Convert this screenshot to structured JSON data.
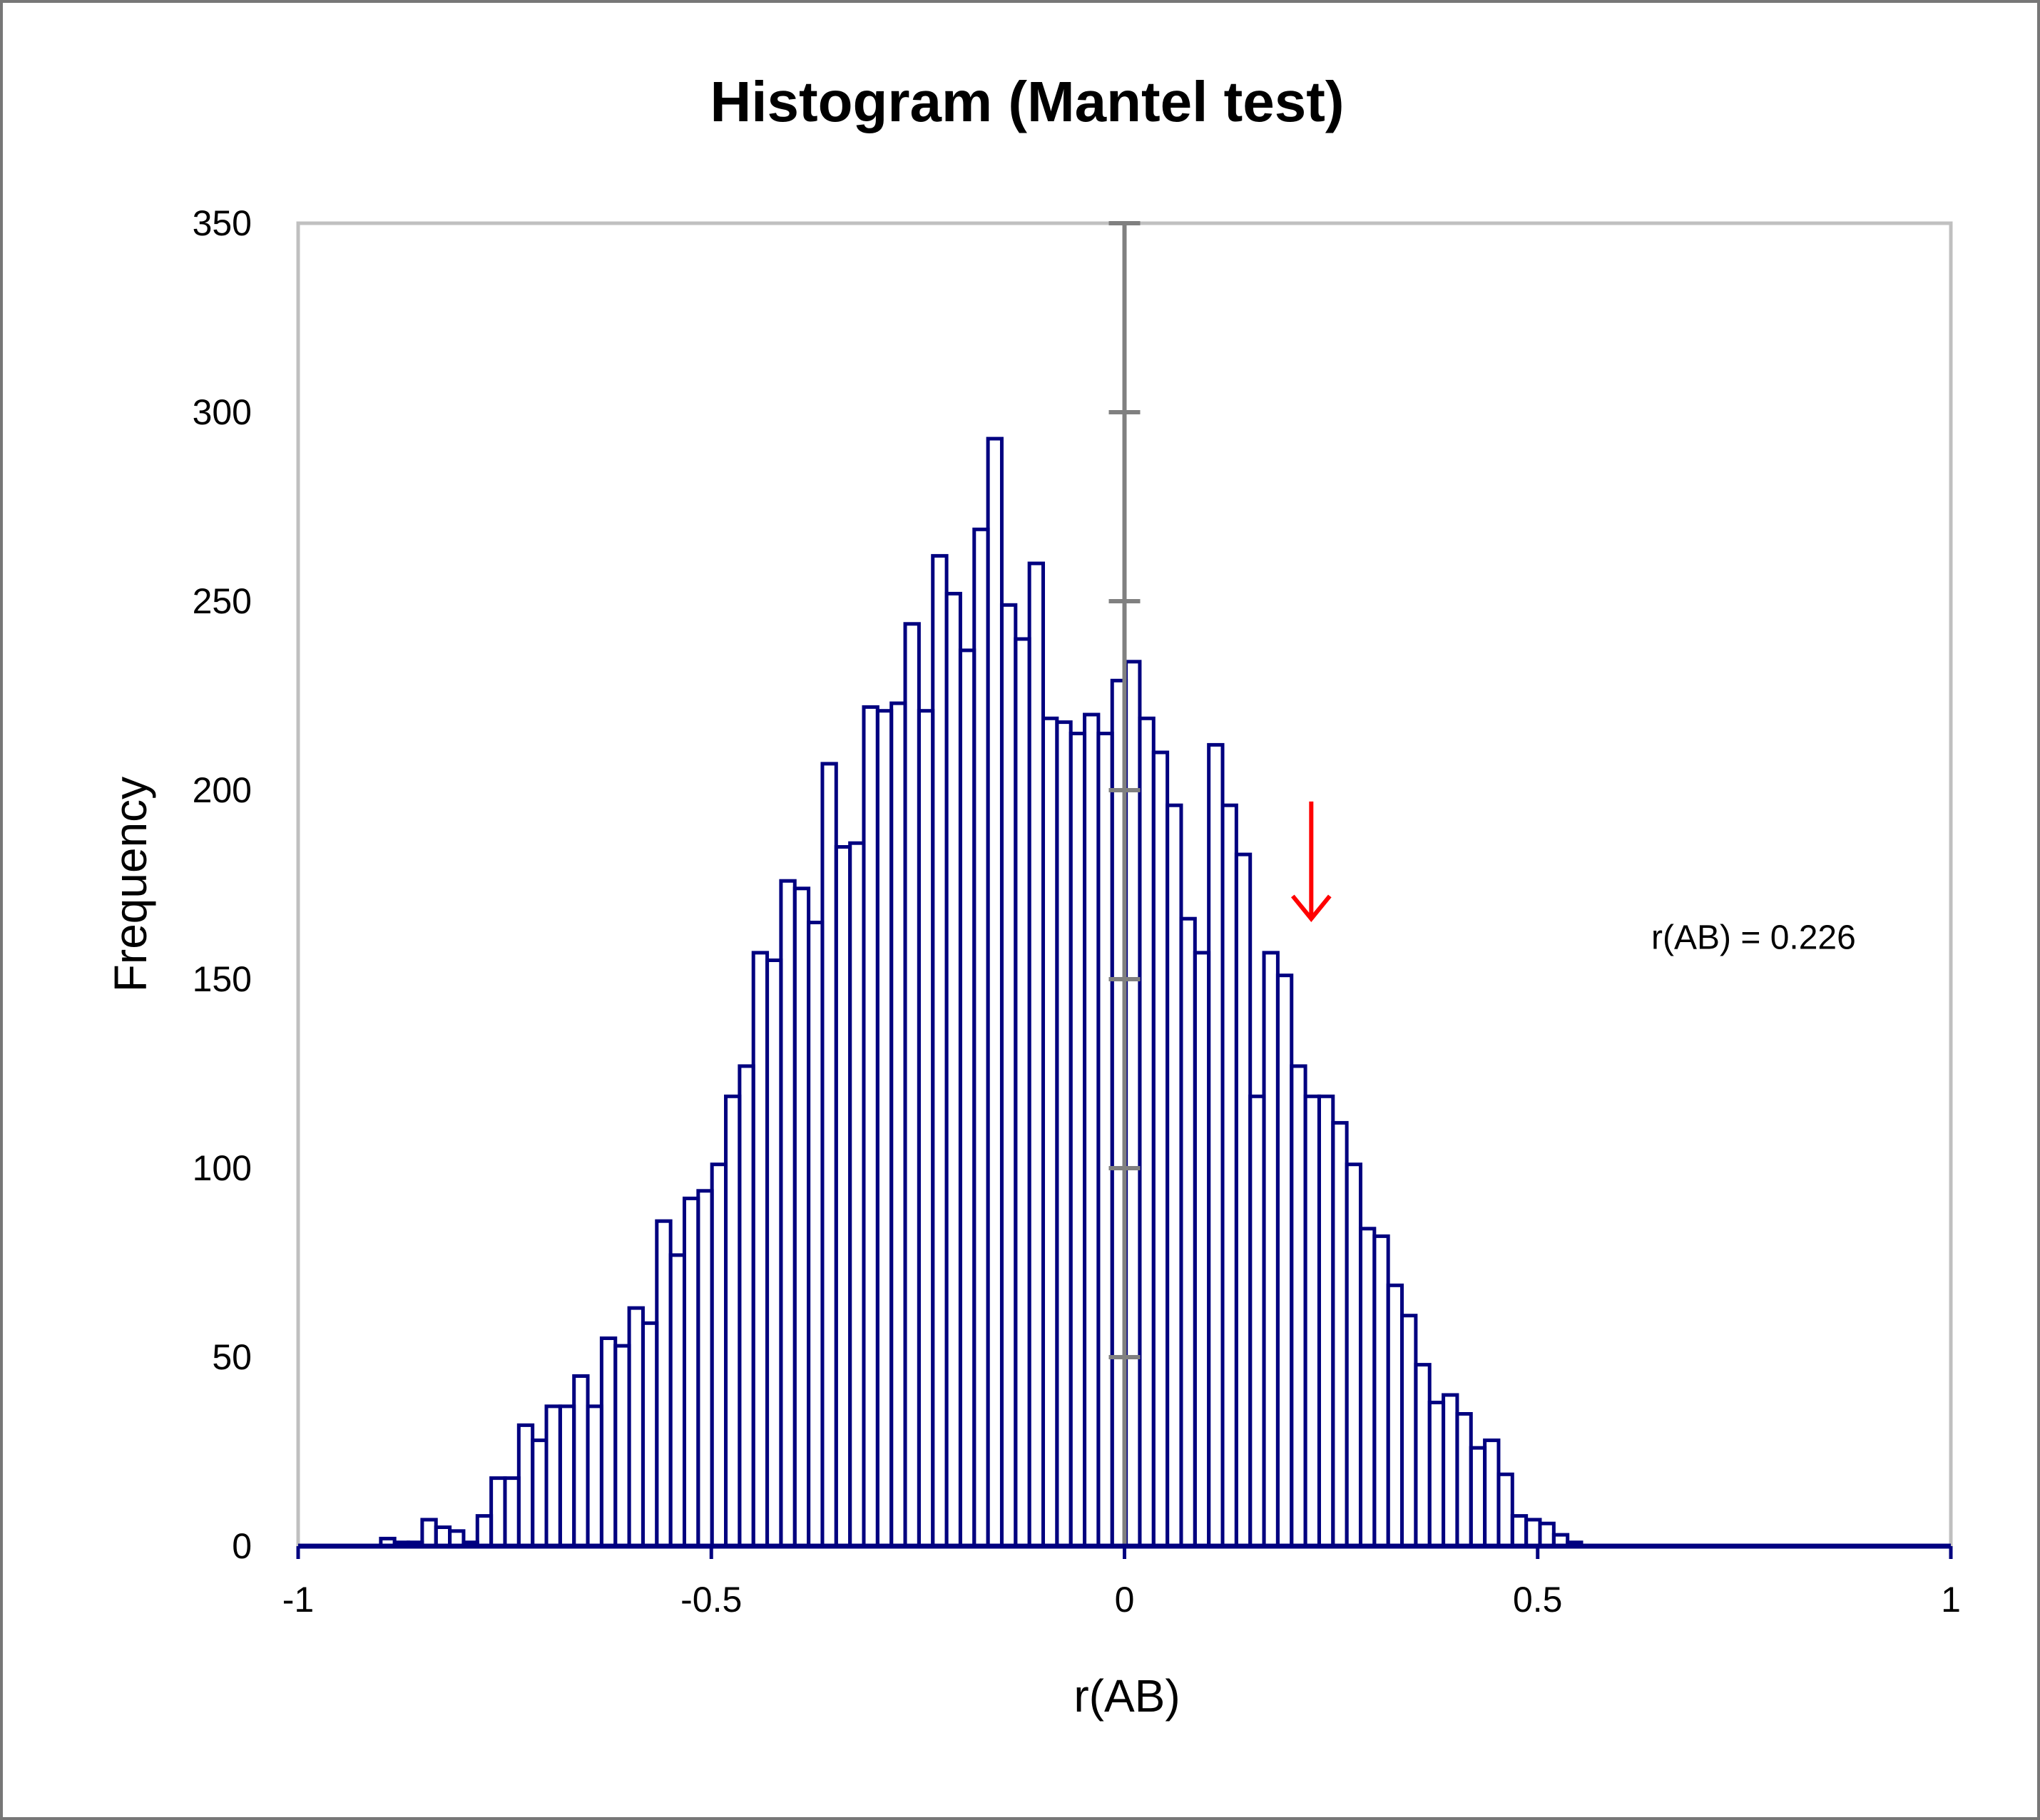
{
  "chart_data": {
    "type": "bar",
    "title": "Histogram (Mantel test)",
    "xlabel": "r(AB)",
    "ylabel": "Frequency",
    "xlim": [
      -1,
      1
    ],
    "ylim": [
      0,
      350
    ],
    "xticks": [
      -1,
      -0.5,
      0,
      0.5,
      1
    ],
    "yticks": [
      0,
      50,
      100,
      150,
      200,
      250,
      300,
      350
    ],
    "xtick_labels": [
      "-1",
      "-0.5",
      "0",
      "0.5",
      "1"
    ],
    "ytick_labels": [
      "0",
      "50",
      "100",
      "150",
      "200",
      "250",
      "300",
      "350"
    ],
    "grid": false,
    "bin_start": -0.9,
    "bin_width": 0.0167,
    "values": [
      2,
      1,
      1,
      7,
      5,
      4,
      1,
      8,
      18,
      18,
      32,
      28,
      37,
      37,
      45,
      37,
      55,
      53,
      63,
      59,
      86,
      77,
      92,
      94,
      101,
      119,
      127,
      157,
      155,
      176,
      174,
      165,
      207,
      185,
      186,
      222,
      221,
      223,
      244,
      221,
      262,
      252,
      237,
      269,
      293,
      249,
      240,
      260,
      219,
      218,
      215,
      220,
      215,
      229,
      234,
      219,
      210,
      196,
      166,
      157,
      212,
      196,
      183,
      119,
      157,
      151,
      127,
      119,
      119,
      112,
      101,
      84,
      82,
      69,
      61,
      48,
      38,
      40,
      35,
      26,
      28,
      19,
      8,
      7,
      6,
      3,
      1
    ],
    "annotation": {
      "label": "r(AB) = 0.226",
      "x": 0.226,
      "arrow_color": "#ff0000"
    },
    "bar_color": "#000080",
    "axis_color": "#808080",
    "frame_color": "#c0c0c0"
  }
}
